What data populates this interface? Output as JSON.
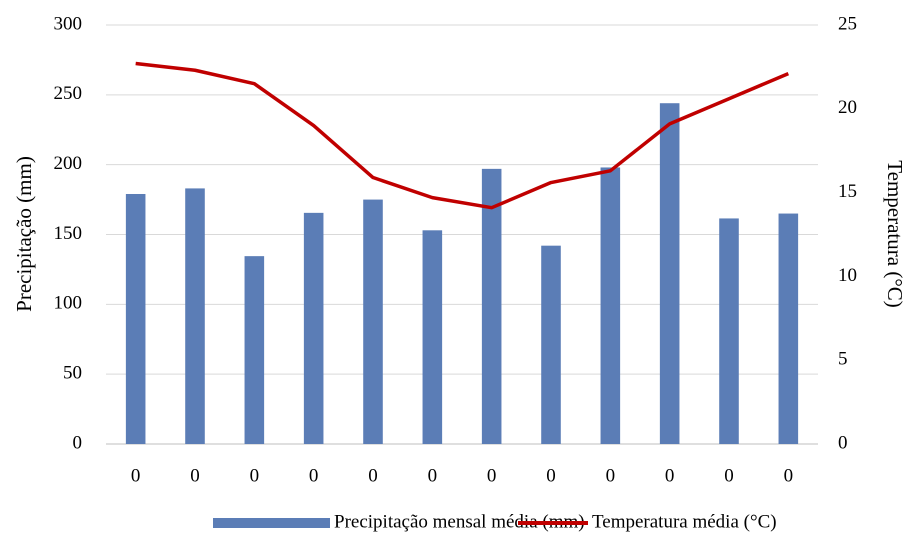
{
  "chart_data": {
    "type": "bar",
    "ylabel": "Precipitação (mm)",
    "y2label": "Temperatura (°C)",
    "categories": [
      "0",
      "0",
      "0",
      "0",
      "0",
      "0",
      "0",
      "0",
      "0",
      "0",
      "0",
      "0"
    ],
    "series": [
      {
        "name": "Precipitação mensal média (mm)",
        "type": "bar",
        "color": "#5b7db6",
        "values": [
          179,
          183,
          134.5,
          165.5,
          175,
          153,
          197,
          142,
          198,
          244,
          161.5,
          165
        ]
      },
      {
        "name": "Temperatura média (°C)",
        "type": "line",
        "axis": "y2",
        "color": "#c00000",
        "values": [
          22.7,
          22.3,
          21.5,
          19,
          15.9,
          14.7,
          14.1,
          15.6,
          16.3,
          19.1,
          20.6,
          22.1
        ]
      }
    ],
    "ylim": [
      0,
      300
    ],
    "yticks": [
      0,
      50,
      100,
      150,
      200,
      250,
      300
    ],
    "y2lim": [
      0,
      25
    ],
    "y2ticks": [
      0,
      5,
      10,
      15,
      20,
      25
    ],
    "grid": true,
    "legend": "bottom"
  }
}
